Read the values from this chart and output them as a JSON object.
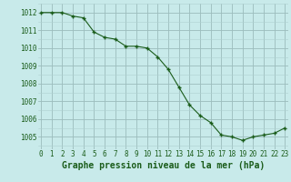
{
  "x": [
    0,
    1,
    2,
    3,
    4,
    5,
    6,
    7,
    8,
    9,
    10,
    11,
    12,
    13,
    14,
    15,
    16,
    17,
    18,
    19,
    20,
    21,
    22,
    23
  ],
  "y": [
    1012.0,
    1012.0,
    1012.0,
    1011.8,
    1011.7,
    1010.9,
    1010.6,
    1010.5,
    1010.1,
    1010.1,
    1010.0,
    1009.5,
    1008.8,
    1007.8,
    1006.8,
    1006.2,
    1005.8,
    1005.1,
    1005.0,
    1004.8,
    1005.0,
    1005.1,
    1005.2,
    1005.5
  ],
  "line_color": "#1a5c1a",
  "marker_color": "#1a5c1a",
  "bg_color": "#c8eaea",
  "grid_color_major": "#9bbcbc",
  "grid_color_minor": "#aed0d0",
  "xlabel": "Graphe pression niveau de la mer (hPa)",
  "xlabel_color": "#1a5c1a",
  "xlabel_fontsize": 7.0,
  "tick_label_color": "#1a5c1a",
  "tick_fontsize": 5.5,
  "ylim": [
    1004.3,
    1012.5
  ],
  "yticks": [
    1005,
    1006,
    1007,
    1008,
    1009,
    1010,
    1011,
    1012
  ],
  "xticks": [
    0,
    1,
    2,
    3,
    4,
    5,
    6,
    7,
    8,
    9,
    10,
    11,
    12,
    13,
    14,
    15,
    16,
    17,
    18,
    19,
    20,
    21,
    22,
    23
  ]
}
